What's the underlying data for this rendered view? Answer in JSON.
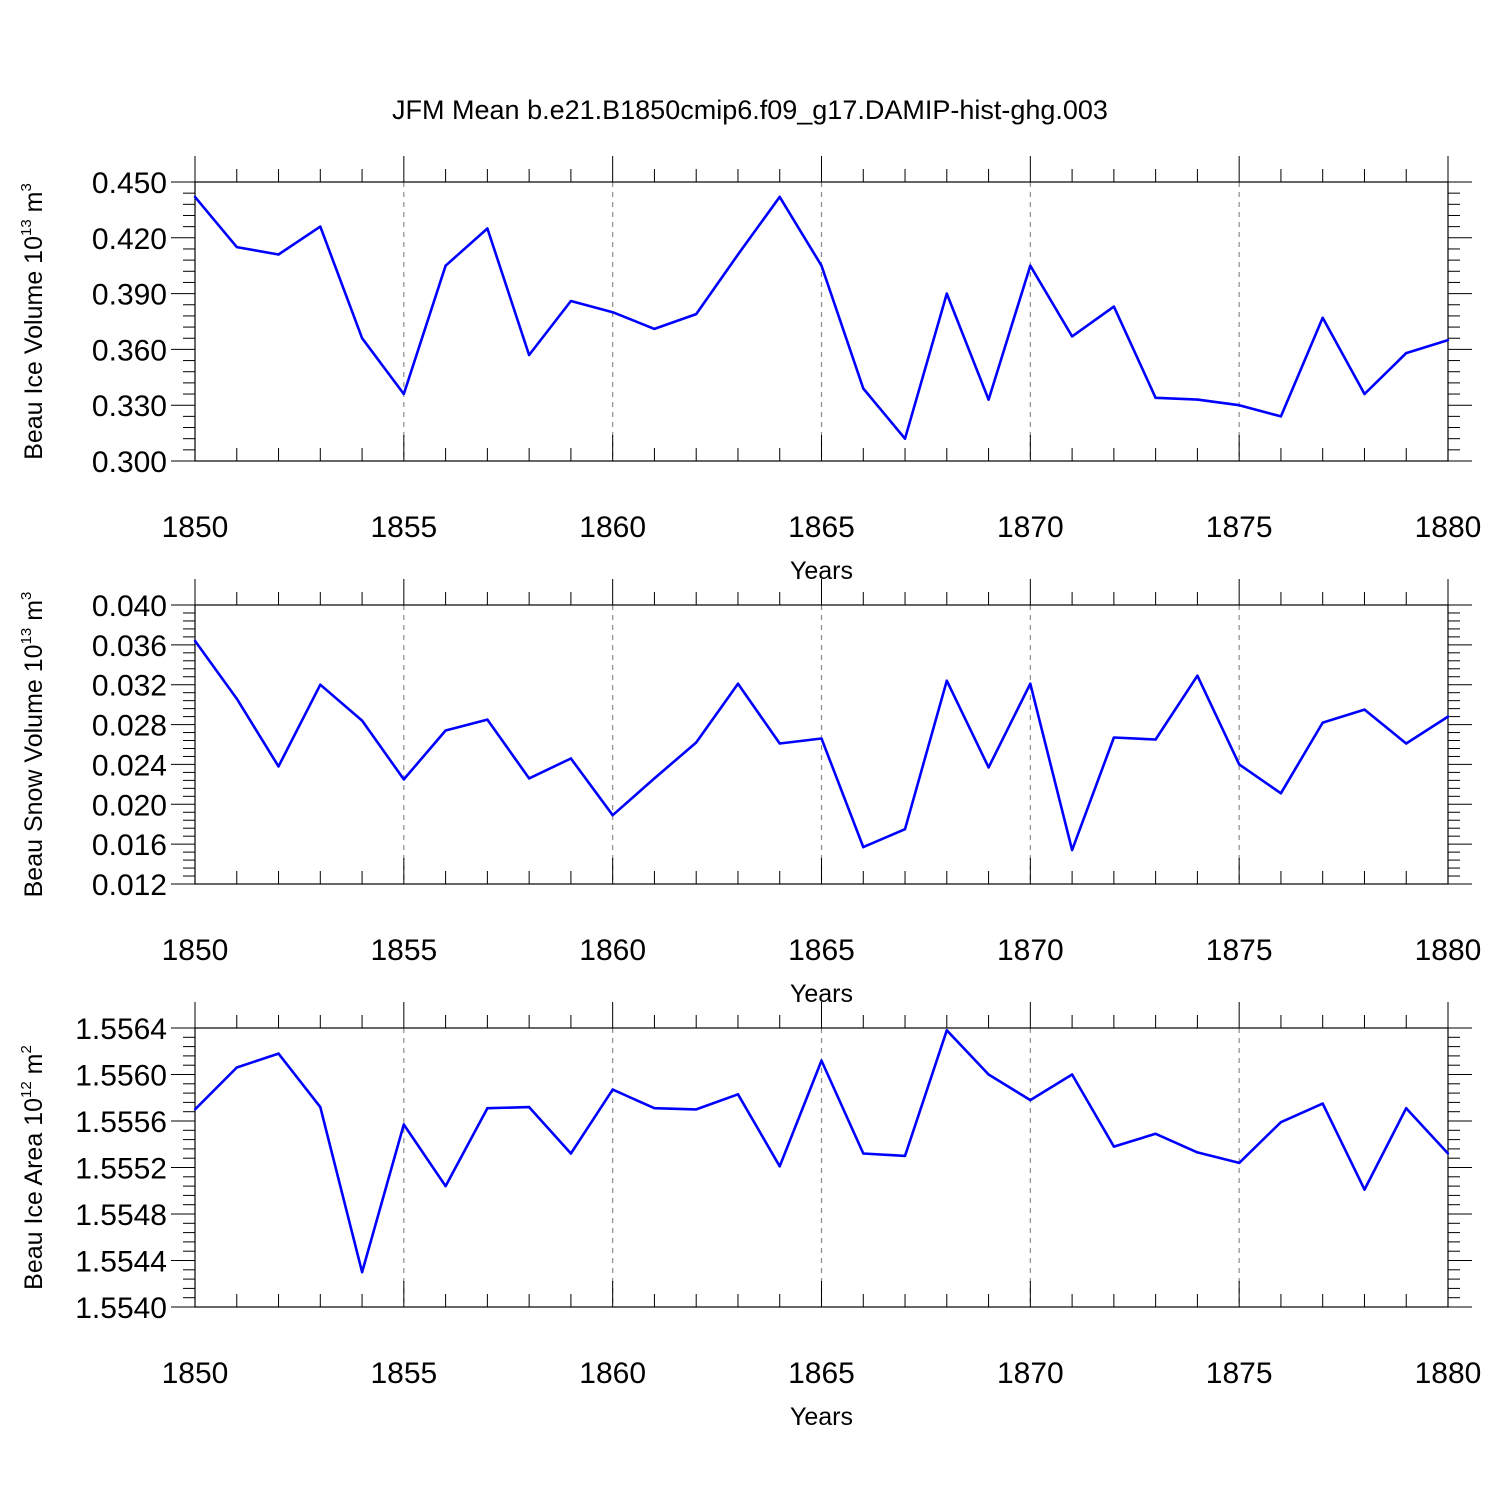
{
  "title": "JFM Mean b.e21.B1850cmip6.f09_g17.DAMIP-hist-ghg.003",
  "colors": {
    "line": "#0000ff",
    "axis": "#000000",
    "grid": "#8c8c8c"
  },
  "chart_data": [
    {
      "type": "line",
      "ylabel": {
        "base": "Beau Ice Volume 10",
        "exp": "13",
        "unit": " m",
        "unit_exp": "3"
      },
      "xlabel": "Years",
      "xlim": [
        1850,
        1880
      ],
      "ylim": [
        0.3,
        0.45
      ],
      "xticks": [
        1850,
        1855,
        1860,
        1865,
        1870,
        1875,
        1880
      ],
      "yticks": [
        "0.300",
        "0.330",
        "0.360",
        "0.390",
        "0.420",
        "0.450"
      ],
      "grid": "vertical dashed at major x ticks",
      "series": [
        {
          "name": "Beau Ice Volume",
          "x": [
            1850,
            1851,
            1852,
            1853,
            1854,
            1855,
            1856,
            1857,
            1858,
            1859,
            1860,
            1861,
            1862,
            1863,
            1864,
            1865,
            1866,
            1867,
            1868,
            1869,
            1870,
            1871,
            1872,
            1873,
            1874,
            1875,
            1876,
            1877,
            1878,
            1879,
            1880
          ],
          "values": [
            0.442,
            0.415,
            0.411,
            0.426,
            0.366,
            0.336,
            0.405,
            0.425,
            0.357,
            0.386,
            0.38,
            0.371,
            0.379,
            0.411,
            0.442,
            0.405,
            0.339,
            0.312,
            0.39,
            0.333,
            0.405,
            0.367,
            0.383,
            0.334,
            0.333,
            0.33,
            0.324,
            0.377,
            0.336,
            0.358,
            0.365
          ]
        }
      ]
    },
    {
      "type": "line",
      "ylabel": {
        "base": "Beau Snow Volume 10",
        "exp": "13",
        "unit": " m",
        "unit_exp": "3"
      },
      "xlabel": "Years",
      "xlim": [
        1850,
        1880
      ],
      "ylim": [
        0.012,
        0.04
      ],
      "xticks": [
        1850,
        1855,
        1860,
        1865,
        1870,
        1875,
        1880
      ],
      "yticks": [
        "0.012",
        "0.016",
        "0.020",
        "0.024",
        "0.028",
        "0.032",
        "0.036",
        "0.040"
      ],
      "grid": "vertical dashed at major x ticks",
      "series": [
        {
          "name": "Beau Snow Volume",
          "x": [
            1850,
            1851,
            1852,
            1853,
            1854,
            1855,
            1856,
            1857,
            1858,
            1859,
            1860,
            1861,
            1862,
            1863,
            1864,
            1865,
            1866,
            1867,
            1868,
            1869,
            1870,
            1871,
            1872,
            1873,
            1874,
            1875,
            1876,
            1877,
            1878,
            1879,
            1880
          ],
          "values": [
            0.0364,
            0.0306,
            0.0238,
            0.032,
            0.0284,
            0.0225,
            0.0274,
            0.0285,
            0.0226,
            0.0246,
            0.0189,
            0.0226,
            0.0262,
            0.0321,
            0.0261,
            0.0266,
            0.0157,
            0.0175,
            0.0324,
            0.0237,
            0.0321,
            0.0154,
            0.0267,
            0.0265,
            0.0329,
            0.024,
            0.0211,
            0.0282,
            0.0295,
            0.0261,
            0.0288
          ]
        }
      ]
    },
    {
      "type": "line",
      "ylabel": {
        "base": "Beau Ice Area 10",
        "exp": "12",
        "unit": " m",
        "unit_exp": "2"
      },
      "xlabel": "Years",
      "xlim": [
        1850,
        1880
      ],
      "ylim": [
        1.554,
        1.5564
      ],
      "xticks": [
        1850,
        1855,
        1860,
        1865,
        1870,
        1875,
        1880
      ],
      "yticks": [
        "1.5540",
        "1.5544",
        "1.5548",
        "1.5552",
        "1.5556",
        "1.5560",
        "1.5564"
      ],
      "grid": "vertical dashed at major x ticks",
      "series": [
        {
          "name": "Beau Ice Area",
          "x": [
            1850,
            1851,
            1852,
            1853,
            1854,
            1855,
            1856,
            1857,
            1858,
            1859,
            1860,
            1861,
            1862,
            1863,
            1864,
            1865,
            1866,
            1867,
            1868,
            1869,
            1870,
            1871,
            1872,
            1873,
            1874,
            1875,
            1876,
            1877,
            1878,
            1879,
            1880
          ],
          "values": [
            1.5557,
            1.55606,
            1.55618,
            1.55572,
            1.5543,
            1.55557,
            1.55504,
            1.55571,
            1.55572,
            1.55532,
            1.55587,
            1.55571,
            1.5557,
            1.55583,
            1.55521,
            1.55612,
            1.55532,
            1.5553,
            1.55638,
            1.556,
            1.55578,
            1.556,
            1.55538,
            1.55549,
            1.55533,
            1.55524,
            1.55559,
            1.55575,
            1.55501,
            1.55571,
            1.55532
          ]
        }
      ]
    }
  ]
}
